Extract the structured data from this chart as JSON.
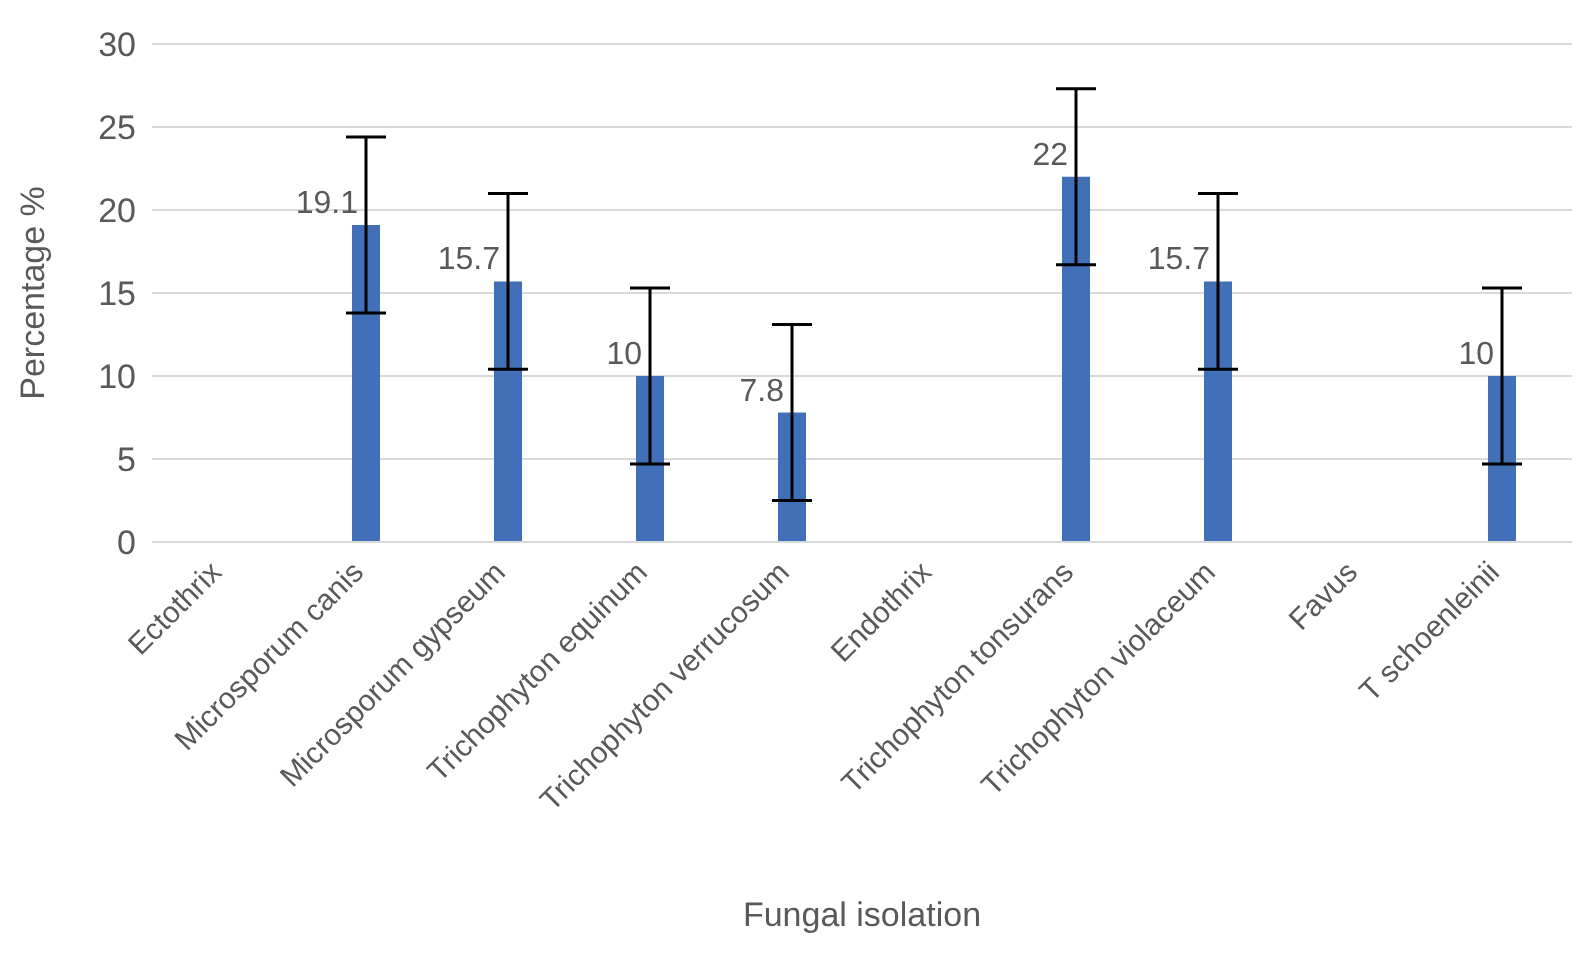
{
  "chart_data": {
    "type": "bar",
    "xlabel": "Fungal isolation",
    "ylabel": "Percentage %",
    "categories": [
      "Ectothrix",
      "Microsporum canis",
      "Microsporum gypseum",
      "Trichophyton equinum",
      "Trichophyton verrucosum",
      "Endothrix",
      "Trichophyton tonsurans",
      "Trichophyton violaceum",
      "Favus",
      "T schoenleinii"
    ],
    "values": [
      null,
      19.1,
      15.7,
      10,
      7.8,
      null,
      22,
      15.7,
      null,
      10
    ],
    "errors": [
      null,
      5.3,
      5.3,
      5.3,
      5.3,
      null,
      5.3,
      5.3,
      null,
      5.3
    ],
    "color": "#4270b8",
    "ylim": [
      0,
      30
    ],
    "yticks": [
      0,
      5,
      10,
      15,
      20,
      25,
      30
    ],
    "grid": "y",
    "data_labels": true
  }
}
